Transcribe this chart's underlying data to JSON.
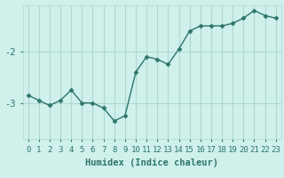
{
  "x": [
    0,
    1,
    2,
    3,
    4,
    5,
    6,
    7,
    8,
    9,
    10,
    11,
    12,
    13,
    14,
    15,
    16,
    17,
    18,
    19,
    20,
    21,
    22,
    23
  ],
  "y": [
    -2.85,
    -2.95,
    -3.05,
    -2.95,
    -2.75,
    -3.0,
    -3.0,
    -3.1,
    -3.35,
    -3.25,
    -2.4,
    -2.1,
    -2.15,
    -2.25,
    -1.95,
    -1.6,
    -1.5,
    -1.5,
    -1.5,
    -1.45,
    -1.35,
    -1.2,
    -1.3,
    -1.35
  ],
  "line_color": "#2e756a",
  "marker": "D",
  "marker_size": 2.5,
  "bg_color": "#cff0eb",
  "grid_color": "#aed8d2",
  "text_color": "#2e756a",
  "xlabel": "Humidex (Indice chaleur)",
  "ylabel": "",
  "yticks": [
    -3,
    -2
  ],
  "ylim": [
    -3.7,
    -1.1
  ],
  "xlim": [
    -0.5,
    23.5
  ],
  "xticks": [
    0,
    1,
    2,
    3,
    4,
    5,
    6,
    7,
    8,
    9,
    10,
    11,
    12,
    13,
    14,
    15,
    16,
    17,
    18,
    19,
    20,
    21,
    22,
    23
  ],
  "tick_label_fontsize": 6.5,
  "xlabel_fontsize": 7.5
}
